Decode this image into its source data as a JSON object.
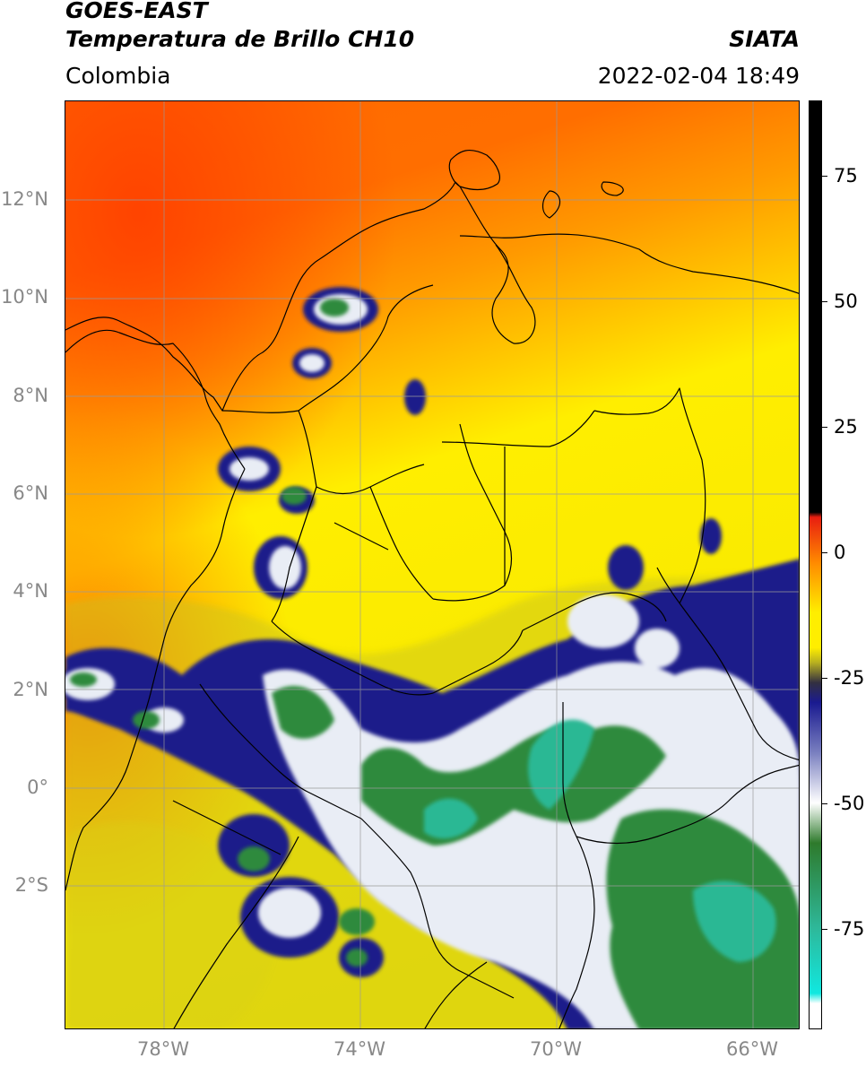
{
  "header": {
    "title_line1": "GOES-EAST",
    "title_line2": "Temperatura de Brillo CH10",
    "region": "Colombia",
    "source": "SIATA",
    "datetime": "2022-02-04 18:49"
  },
  "map": {
    "lat_labels": [
      "12°N",
      "10°N",
      "8°N",
      "6°N",
      "4°N",
      "2°N",
      "0°",
      "2°S"
    ],
    "lon_labels": [
      "78°W",
      "74°W",
      "70°W",
      "66°W"
    ],
    "grid": true,
    "colors": {
      "warm_red": "#ff4a00",
      "orange": "#ff8c00",
      "yellow": "#ffee00",
      "olive": "#bfb920",
      "navy": "#1a1a8c",
      "white_cloud": "#e8ecf4",
      "green": "#2d8a3a",
      "teal": "#2ab894",
      "coast": "#000000"
    }
  },
  "colorbar": {
    "labels": [
      "75",
      "50",
      "25",
      "0",
      "-25",
      "-50",
      "-75"
    ],
    "values": [
      75,
      50,
      25,
      0,
      -25,
      -50,
      -75
    ],
    "range": [
      -95,
      90
    ],
    "stops": [
      {
        "value": 90,
        "color": "#000000"
      },
      {
        "value": 8,
        "color": "#000000"
      },
      {
        "value": 7,
        "color": "#e81e10"
      },
      {
        "value": -2,
        "color": "#ff8a00"
      },
      {
        "value": -12,
        "color": "#ffee00"
      },
      {
        "value": -19,
        "color": "#ffee00"
      },
      {
        "value": -22,
        "color": "#b8b020"
      },
      {
        "value": -26,
        "color": "#333040"
      },
      {
        "value": -30,
        "color": "#1a1a90"
      },
      {
        "value": -40,
        "color": "#7a80c0"
      },
      {
        "value": -50,
        "color": "#ffffff"
      },
      {
        "value": -58,
        "color": "#2e7a2c"
      },
      {
        "value": -75,
        "color": "#2eb89a"
      },
      {
        "value": -88,
        "color": "#10e8e0"
      },
      {
        "value": -90,
        "color": "#ffffff"
      },
      {
        "value": -95,
        "color": "#ffffff"
      }
    ]
  }
}
